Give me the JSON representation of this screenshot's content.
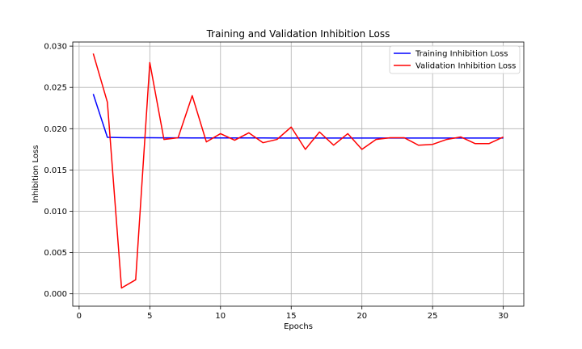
{
  "chart_data": {
    "type": "line",
    "title": "Training and Validation Inhibition Loss",
    "xlabel": "Epochs",
    "ylabel": "Inhibition Loss",
    "xlim": [
      -0.45,
      31.45
    ],
    "ylim": [
      -0.0015,
      0.0305
    ],
    "xticks": [
      0,
      5,
      10,
      15,
      20,
      25,
      30
    ],
    "yticks": [
      0.0,
      0.005,
      0.01,
      0.015,
      0.02,
      0.025,
      0.03
    ],
    "ytick_labels": [
      "0.000",
      "0.005",
      "0.010",
      "0.015",
      "0.020",
      "0.025",
      "0.030"
    ],
    "grid": true,
    "legend_position": "top-right",
    "x": [
      1,
      2,
      3,
      4,
      5,
      6,
      7,
      8,
      9,
      10,
      11,
      12,
      13,
      14,
      15,
      16,
      17,
      18,
      19,
      20,
      21,
      22,
      23,
      24,
      25,
      26,
      27,
      28,
      29,
      30
    ],
    "series": [
      {
        "name": "Training Inhibition Loss",
        "color": "#0000ff",
        "values": [
          0.0242,
          0.01895,
          0.01892,
          0.01891,
          0.0189,
          0.01889,
          0.01889,
          0.01888,
          0.01888,
          0.01888,
          0.01888,
          0.01888,
          0.01888,
          0.01887,
          0.01887,
          0.01887,
          0.01887,
          0.01887,
          0.01887,
          0.01887,
          0.01887,
          0.01887,
          0.01887,
          0.01887,
          0.01887,
          0.01887,
          0.01887,
          0.01887,
          0.01887,
          0.01887
        ]
      },
      {
        "name": "Validation Inhibition Loss",
        "color": "#ff0000",
        "values": [
          0.0291,
          0.0232,
          0.0007,
          0.0017,
          0.028,
          0.0187,
          0.0189,
          0.024,
          0.0184,
          0.0194,
          0.0186,
          0.0195,
          0.0183,
          0.0187,
          0.0202,
          0.0175,
          0.0196,
          0.018,
          0.0194,
          0.0175,
          0.0187,
          0.0189,
          0.0189,
          0.018,
          0.0181,
          0.0187,
          0.019,
          0.0182,
          0.0182,
          0.019
        ]
      }
    ]
  }
}
